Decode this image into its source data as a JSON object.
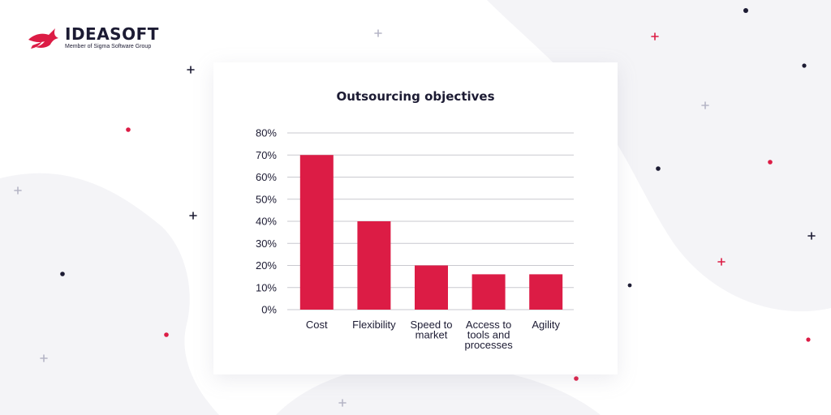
{
  "brand": {
    "name": "IDEASOFT",
    "tagline": "Member of Sigma Software Group",
    "logo_icon": "bird-logo-icon",
    "accent_color": "#dc1c45",
    "dark_color": "#1c1b33"
  },
  "chart_data": {
    "type": "bar",
    "title": "Outsourcing objectives",
    "xlabel": "",
    "ylabel": "",
    "categories": [
      "Cost",
      "Flexibility",
      "Speed to market",
      "Access to tools and processes",
      "Agility"
    ],
    "category_lines": [
      [
        "Cost"
      ],
      [
        "Flexibility"
      ],
      [
        "Speed to",
        "market"
      ],
      [
        "Access to",
        "tools and",
        "processes"
      ],
      [
        "Agility"
      ]
    ],
    "values": [
      70,
      40,
      20,
      16,
      16
    ],
    "ylim": [
      0,
      80
    ],
    "yticks": [
      0,
      10,
      20,
      30,
      40,
      50,
      60,
      70,
      80
    ],
    "ytick_labels": [
      "0%",
      "10%",
      "20%",
      "30%",
      "40%",
      "50%",
      "60%",
      "70%",
      "80%"
    ],
    "bar_color": "#dc1c45",
    "grid": true,
    "legend": "none"
  }
}
